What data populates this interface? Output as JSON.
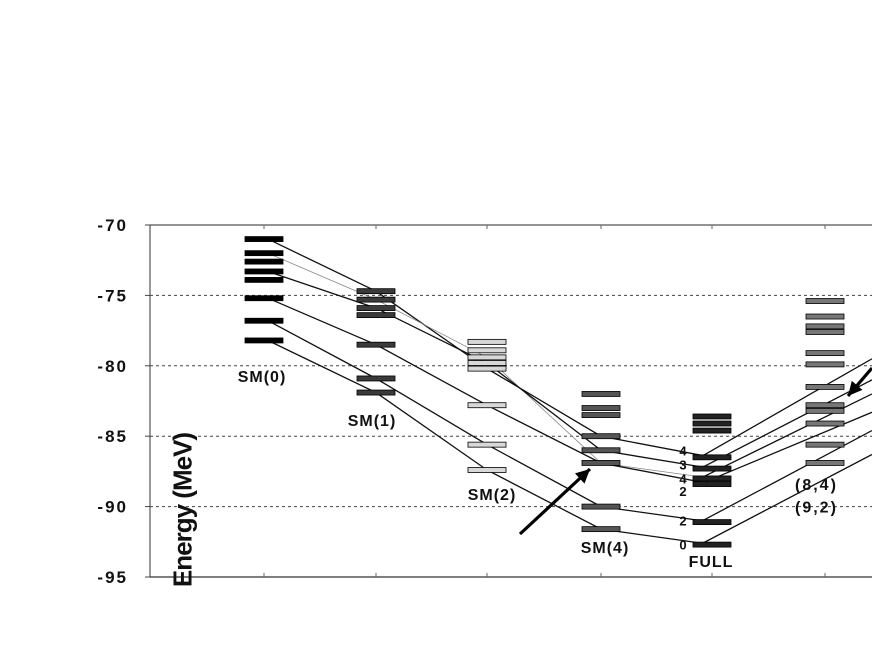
{
  "chart_data": {
    "type": "scatter",
    "title": "",
    "ylabel": "Energy (MeV)",
    "ylim": [
      -95,
      -70
    ],
    "yticks": [
      "-70",
      "-75",
      "-80",
      "-85",
      "-90",
      "-95"
    ],
    "grid": "horizontal dashed",
    "columns": [
      {
        "name": "SM(0)",
        "color": "#000000",
        "levels": [
          -71.0,
          -72.0,
          -72.6,
          -73.3,
          -73.9,
          -75.2,
          -76.8,
          -78.2
        ]
      },
      {
        "name": "SM(1)",
        "color": "#3a3a3a",
        "levels": [
          -74.7,
          -75.3,
          -75.9,
          -76.4,
          -78.5,
          -80.9,
          -81.9
        ]
      },
      {
        "name": "SM(2)",
        "color": "#d8d8d8",
        "levels": [
          -78.3,
          -78.9,
          -79.4,
          -79.8,
          -80.2,
          -82.8,
          -85.6,
          -87.4
        ]
      },
      {
        "name": "SM(4)",
        "color": "#555555",
        "levels": [
          -82.0,
          -83.0,
          -83.5,
          -85.0,
          -86.0,
          -86.9,
          -90.0,
          -91.6
        ]
      },
      {
        "name": "FULL",
        "color": "#222222",
        "levels": [
          -83.6,
          -84.1,
          -84.6,
          -86.5,
          -87.3,
          -88.0,
          -88.4,
          -91.1,
          -92.7
        ]
      },
      {
        "name": "",
        "color": "#777777",
        "levels": [
          -75.4,
          -76.5,
          -77.2,
          -77.6,
          -79.1,
          -79.9,
          -81.5,
          -82.8,
          -83.2,
          -84.1,
          -85.6,
          -86.9
        ]
      }
    ],
    "connections": [
      {
        "points": [
          [
            "SM(0)",
            -71.0
          ],
          [
            "SM(1)",
            -74.7
          ],
          [
            "SM(2)",
            -80.2
          ],
          [
            "SM(4)",
            -85.0
          ],
          [
            "FULL",
            -86.5
          ]
        ]
      },
      {
        "points": [
          [
            "SM(0)",
            -72.0
          ],
          [
            "SM(1)",
            -75.3
          ],
          [
            "SM(2)",
            -79.4
          ],
          [
            "SM(4)",
            -86.9
          ],
          [
            "FULL",
            -88.0
          ]
        ],
        "thin": true
      },
      {
        "points": [
          [
            "SM(0)",
            -73.3
          ],
          [
            "SM(1)",
            -75.9
          ],
          [
            "SM(2)",
            -79.8
          ],
          [
            "SM(4)",
            -86.0
          ],
          [
            "FULL",
            -87.3
          ]
        ]
      },
      {
        "points": [
          [
            "SM(0)",
            -75.2
          ],
          [
            "SM(1)",
            -78.5
          ],
          [
            "SM(2)",
            -82.8
          ],
          [
            "SM(4)",
            -86.9
          ],
          [
            "FULL",
            -88.4
          ]
        ]
      },
      {
        "points": [
          [
            "SM(0)",
            -76.8
          ],
          [
            "SM(1)",
            -80.9
          ],
          [
            "SM(2)",
            -85.6
          ],
          [
            "SM(4)",
            -90.0
          ],
          [
            "FULL",
            -91.1
          ]
        ]
      },
      {
        "points": [
          [
            "SM(0)",
            -78.2
          ],
          [
            "SM(1)",
            -81.9
          ],
          [
            "SM(2)",
            -87.4
          ],
          [
            "SM(4)",
            -91.6
          ],
          [
            "FULL",
            -92.7
          ]
        ]
      }
    ],
    "right_lines": [
      {
        "from": [
          "FULL",
          -86.5
        ],
        "to": -79.5
      },
      {
        "from": [
          "FULL",
          -87.3
        ],
        "to": -81.0
      },
      {
        "from": [
          "FULL",
          -88.0
        ],
        "to": -82.0
      },
      {
        "from": [
          "FULL",
          -88.4
        ],
        "to": -83.3
      },
      {
        "from": [
          "FULL",
          -91.1
        ],
        "to": -84.6
      },
      {
        "from": [
          "FULL",
          -92.7
        ],
        "to": -86.3
      }
    ],
    "full_spin_labels": [
      {
        "text": "4",
        "y": -86.0
      },
      {
        "text": "3",
        "y": -87.0
      },
      {
        "text": "4",
        "y": -88.0
      },
      {
        "text": "2",
        "y": -88.9
      },
      {
        "text": "2",
        "y": -91.0
      },
      {
        "text": "0",
        "y": -92.7
      }
    ],
    "annotations": [
      {
        "text": "(8,4)",
        "y": -88.4
      },
      {
        "text": "(9,2)",
        "y": -90.0
      }
    ]
  }
}
